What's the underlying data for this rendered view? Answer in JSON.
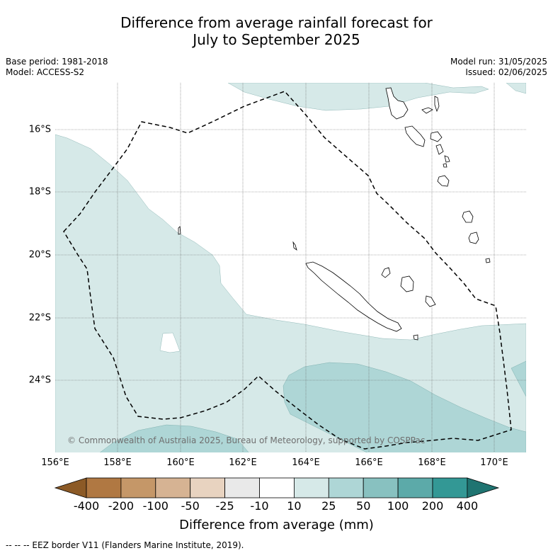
{
  "title": {
    "line1": "Difference from average rainfall forecast for",
    "line2": "July to September 2025"
  },
  "meta_left": {
    "base_period": "Base period: 1981-2018",
    "model": "Model: ACCESS-S2"
  },
  "meta_right": {
    "model_run": "Model run: 31/05/2025",
    "issued": "Issued: 02/06/2025"
  },
  "map": {
    "lat_labels": [
      "16°S",
      "18°S",
      "20°S",
      "22°S",
      "24°S"
    ],
    "lon_labels": [
      "156°E",
      "158°E",
      "160°E",
      "162°E",
      "164°E",
      "166°E",
      "168°E",
      "170°E"
    ],
    "copyright": "© Commonwealth of Australia 2025, Bureau of Meteorology, supported by COSPPac",
    "colors": {
      "c10_25": "#d6e9e8",
      "c25_50": "#aed6d6",
      "land_outline": "#000000",
      "eez_border": "#000000",
      "grid": "#666666"
    }
  },
  "colorbar": {
    "ticks": [
      "-400",
      "-200",
      "-100",
      "-50",
      "-25",
      "-10",
      "10",
      "25",
      "50",
      "100",
      "200",
      "400"
    ],
    "colors": [
      "#8c5a26",
      "#b07842",
      "#c59768",
      "#d6b393",
      "#e8d3c0",
      "#e9e9e9",
      "#ffffff",
      "#d6e9e8",
      "#aed6d6",
      "#88c1c0",
      "#5caaa9",
      "#339895",
      "#1f7471"
    ],
    "title": "Difference from average (mm)"
  },
  "footer": "--  --  -- EEZ border V11 (Flanders Marine Institute, 2019)."
}
